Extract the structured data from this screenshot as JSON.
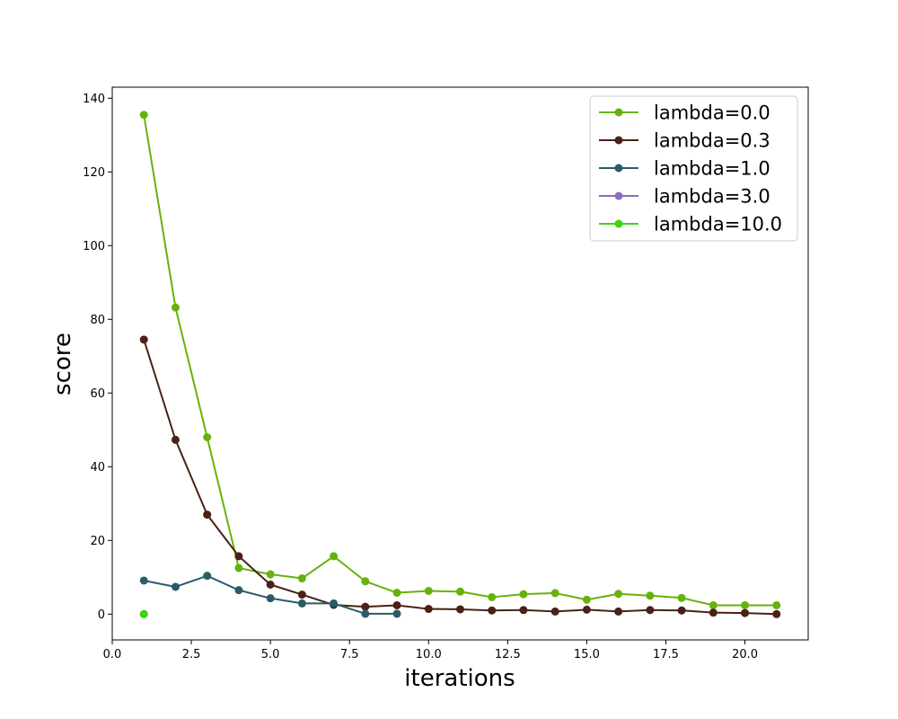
{
  "chart_data": {
    "type": "line",
    "title": "",
    "xlabel": "iterations",
    "ylabel": "score",
    "xlim": [
      0,
      22
    ],
    "ylim": [
      -7,
      143
    ],
    "xticks": [
      "0.0",
      "2.5",
      "5.0",
      "7.5",
      "10.0",
      "12.5",
      "15.0",
      "17.5",
      "20.0"
    ],
    "yticks": [
      "0",
      "20",
      "40",
      "60",
      "80",
      "100",
      "120",
      "140"
    ],
    "grid": false,
    "legend_position": "top-right",
    "series": [
      {
        "name": "lambda=0.0",
        "color": "#66b20b",
        "x": [
          1,
          2,
          3,
          4,
          5,
          6,
          7,
          8,
          9,
          10,
          11,
          12,
          13,
          14,
          15,
          16,
          17,
          18,
          19,
          20,
          21
        ],
        "y": [
          135.5,
          83.2,
          48,
          12.5,
          10.8,
          9.7,
          15.7,
          8.9,
          5.8,
          6.3,
          6.1,
          4.6,
          5.4,
          5.7,
          3.9,
          5.5,
          5,
          4.4,
          2.4,
          2.4,
          2.4
        ]
      },
      {
        "name": "lambda=0.3",
        "color": "#4a2114",
        "x": [
          1,
          2,
          3,
          4,
          5,
          6,
          7,
          8,
          9,
          10,
          11,
          12,
          13,
          14,
          15,
          16,
          17,
          18,
          19,
          20,
          21
        ],
        "y": [
          74.5,
          47.3,
          27,
          15.7,
          8,
          5.3,
          2.5,
          2,
          2.4,
          1.4,
          1.3,
          1,
          1.1,
          0.7,
          1.2,
          0.7,
          1.1,
          1,
          0.4,
          0.3,
          0
        ]
      },
      {
        "name": "lambda=1.0",
        "color": "#2b5b68",
        "x": [
          1,
          2,
          3,
          4,
          5,
          6,
          7,
          8,
          9
        ],
        "y": [
          9.1,
          7.4,
          10.4,
          6.5,
          4.3,
          2.9,
          2.9,
          0.1,
          0.1
        ]
      },
      {
        "name": "lambda=3.0",
        "color": "#8f6dbd",
        "x": [
          1
        ],
        "y": [
          0
        ]
      },
      {
        "name": "lambda=10.0",
        "color": "#3fd40e",
        "x": [
          1
        ],
        "y": [
          0
        ]
      }
    ]
  }
}
